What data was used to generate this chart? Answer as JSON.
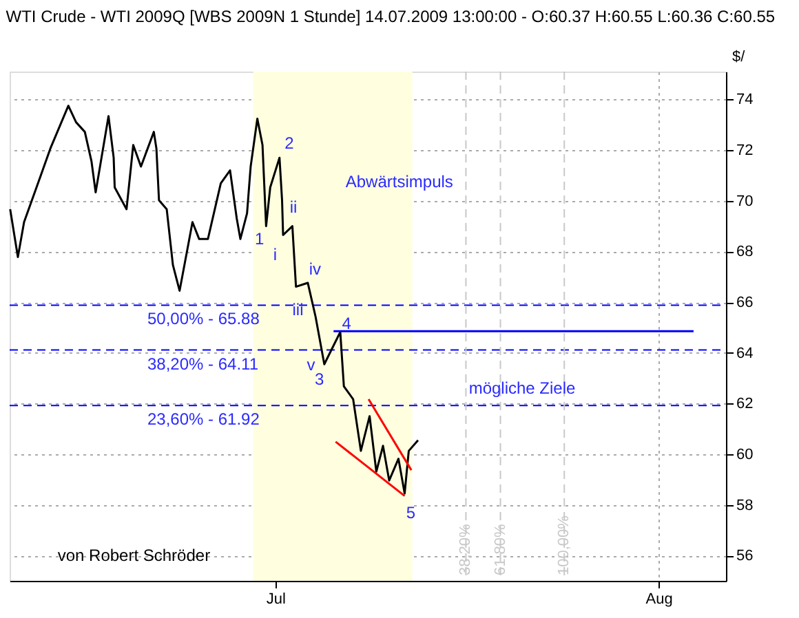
{
  "chart_data": {
    "type": "line",
    "title": "WTI Crude - WTI 2009Q [WBS 2009N 1 Stunde] 14.07.2009 13:00:00 - O:60.37 H:60.55 L:60.36 C:60.55",
    "ylabel": "$/",
    "xlim": [
      "2009-06-09T12:00",
      "2009-08-06T11:00"
    ],
    "xticks": [
      {
        "value": "2009-07-01T00:00",
        "label": "Jul"
      },
      {
        "value": "2009-08-01T00:00",
        "label": "Aug"
      }
    ],
    "ylim": [
      55.0,
      75.1
    ],
    "yticks": [
      56,
      58,
      60,
      62,
      64,
      66,
      68,
      70,
      72,
      74
    ],
    "grid": true,
    "series": [
      {
        "color": "#000000",
        "x": [
          "2009-06-09T13:00",
          "2009-06-10T04:00",
          "2009-06-10T16:00",
          "2009-06-12T04:00",
          "2009-06-12T19:00",
          "2009-06-14T06:00",
          "2009-06-14T21:00",
          "2009-06-15T14:00",
          "2009-06-16T03:00",
          "2009-06-16T11:00",
          "2009-06-17T12:00",
          "2009-06-17T22:00",
          "2009-06-18T00:00",
          "2009-06-18T23:00",
          "2009-06-19T12:00",
          "2009-06-20T03:00",
          "2009-06-21T04:00",
          "2009-06-21T09:00",
          "2009-06-21T14:00",
          "2009-06-22T05:00",
          "2009-06-22T17:00",
          "2009-06-23T06:00",
          "2009-06-23T23:00",
          "2009-06-24T07:00",
          "2009-06-24T20:00",
          "2009-06-25T13:00",
          "2009-06-26T14:00",
          "2009-06-27T08:00",
          "2009-06-27T21:00",
          "2009-06-28T04:00",
          "2009-06-28T17:00",
          "2009-06-29T00:00",
          "2009-06-29T13:00",
          "2009-06-29T23:00",
          "2009-06-30T06:00",
          "2009-06-30T14:00",
          "2009-07-01T08:00",
          "2009-07-01T13:00",
          "2009-07-01T15:00",
          "2009-07-02T09:00",
          "2009-07-02T16:00",
          "2009-07-03T15:00",
          "2009-07-04T06:00",
          "2009-07-04T23:00",
          "2009-07-06T06:00",
          "2009-07-06T13:00",
          "2009-07-07T07:00",
          "2009-07-07T22:00",
          "2009-07-08T15:00",
          "2009-07-09T04:00",
          "2009-07-09T17:00",
          "2009-07-10T05:00",
          "2009-07-10T23:00",
          "2009-07-11T11:00",
          "2009-07-11T19:00",
          "2009-07-12T13:00"
        ],
        "values": [
          69.67,
          67.78,
          69.16,
          71.2,
          72.06,
          73.75,
          73.1,
          72.72,
          71.55,
          70.33,
          73.34,
          71.7,
          70.53,
          69.67,
          72.2,
          71.35,
          72.72,
          72.06,
          70.02,
          69.67,
          67.47,
          66.45,
          68.29,
          69.16,
          68.49,
          68.49,
          70.69,
          71.2,
          69.3,
          68.49,
          69.51,
          71.35,
          73.24,
          72.2,
          69.0,
          70.53,
          71.7,
          70.02,
          68.65,
          69.0,
          66.61,
          66.76,
          65.43,
          63.55,
          64.82,
          62.68,
          62.17,
          60.13,
          61.5,
          59.31,
          60.33,
          58.96,
          59.82,
          58.45,
          60.13,
          60.55
        ]
      },
      {
        "color": "#0000ff",
        "x": [
          "2009-07-05T17:00",
          "2009-08-03T20:00"
        ],
        "values": [
          64.85,
          64.85
        ]
      },
      {
        "color": "#ff0000",
        "x": [
          "2009-07-05T21:00",
          "2009-07-11T11:00"
        ],
        "values": [
          60.49,
          58.35
        ]
      },
      {
        "color": "#ff0000",
        "x": [
          "2009-07-08T13:00",
          "2009-07-12T00:00"
        ],
        "values": [
          62.17,
          59.37
        ]
      }
    ],
    "ref_lines": [
      {
        "axis": "y",
        "value": 65.88,
        "color": "#0000ff",
        "line_style": "dashed"
      },
      {
        "axis": "y",
        "value": 64.11,
        "color": "#0000ff",
        "line_style": "dashed"
      },
      {
        "axis": "y",
        "value": 61.92,
        "color": "#0000ff",
        "line_style": "dashed"
      },
      {
        "axis": "x",
        "value": "2009-07-16T10:00",
        "label": "38,20%",
        "color": "#c8c8c8",
        "line_style": "dashed"
      },
      {
        "axis": "x",
        "value": "2009-07-19T05:00",
        "label": "61,80%",
        "color": "#c8c8c8",
        "line_style": "dashed"
      },
      {
        "axis": "x",
        "value": "2009-07-24T09:00",
        "label": "100,00%",
        "color": "#c8c8c8",
        "line_style": "dashed"
      }
    ],
    "bands": [
      {
        "axis": "x",
        "from": "2009-06-29T05:00",
        "to": "2009-07-12T02:00",
        "color": "#ffffe0"
      }
    ],
    "annotations": [
      {
        "text": "1",
        "x": "2009-06-29T08:00",
        "y": 68.49
      },
      {
        "text": "iii",
        "x": "2009-07-02T09:00",
        "y": 65.69
      },
      {
        "text": "5",
        "x": "2009-07-11T14:00",
        "y": 57.68
      },
      {
        "text": "50,00% - 65.88",
        "y": 65.88
      },
      {
        "text": "38,20% - 64.11",
        "y": 64.11
      },
      {
        "text": "23,60% - 61.92",
        "y": 61.92
      },
      "2",
      "i",
      "ii",
      "iv",
      "v",
      "3",
      "4",
      "Abwärtsimpuls",
      "mögliche Ziele",
      "von Robert Schröder"
    ]
  }
}
